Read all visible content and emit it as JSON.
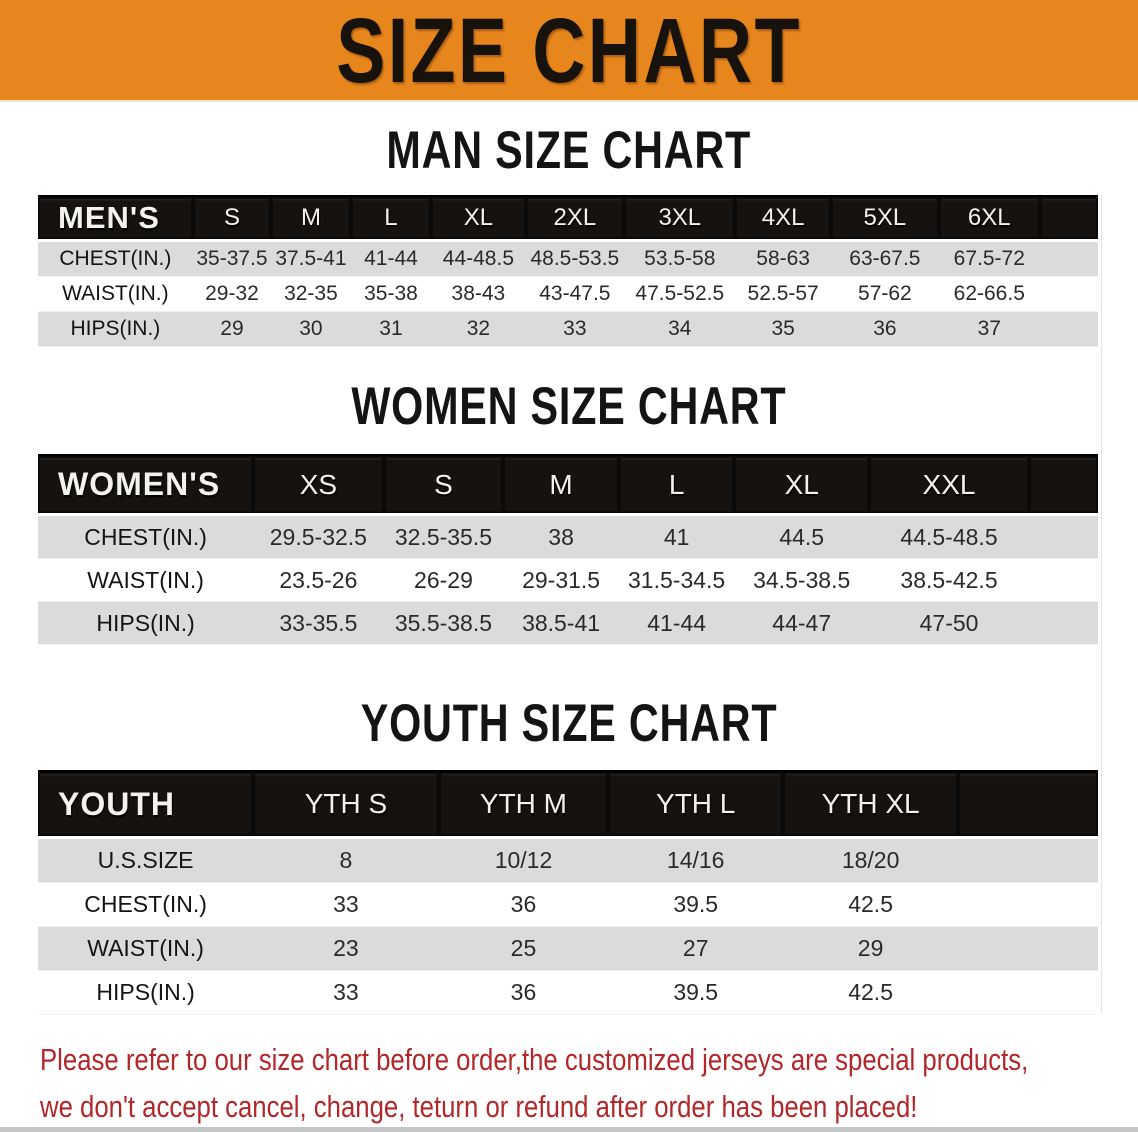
{
  "banner": {
    "title": "SIZE CHART",
    "bg_color": "#e8861e",
    "text_color": "#17120c"
  },
  "sections": [
    {
      "title": "MAN SIZE CHART",
      "table": {
        "corner_label": "MEN'S",
        "columns": [
          "S",
          "M",
          "L",
          "XL",
          "2XL",
          "3XL",
          "4XL",
          "5XL",
          "6XL"
        ],
        "rows": [
          {
            "label": "CHEST(IN.)",
            "values": [
              "35-37.5",
              "37.5-41",
              "41-44",
              "44-48.5",
              "48.5-53.5",
              "53.5-58",
              "58-63",
              "63-67.5",
              "67.5-72"
            ]
          },
          {
            "label": "WAIST(IN.)",
            "values": [
              "29-32",
              "32-35",
              "35-38",
              "38-43",
              "43-47.5",
              "47.5-52.5",
              "52.5-57",
              "57-62",
              "62-66.5"
            ]
          },
          {
            "label": "HIPS(IN.)",
            "values": [
              "29",
              "30",
              "31",
              "32",
              "33",
              "34",
              "35",
              "36",
              "37"
            ]
          }
        ]
      }
    },
    {
      "title": "WOMEN SIZE CHART",
      "table": {
        "corner_label": "WOMEN'S",
        "columns": [
          "XS",
          "S",
          "M",
          "L",
          "XL",
          "XXL"
        ],
        "rows": [
          {
            "label": "CHEST(IN.)",
            "values": [
              "29.5-32.5",
              "32.5-35.5",
              "38",
              "41",
              "44.5",
              "44.5-48.5"
            ]
          },
          {
            "label": "WAIST(IN.)",
            "values": [
              "23.5-26",
              "26-29",
              "29-31.5",
              "31.5-34.5",
              "34.5-38.5",
              "38.5-42.5"
            ]
          },
          {
            "label": "HIPS(IN.)",
            "values": [
              "33-35.5",
              "35.5-38.5",
              "38.5-41",
              "41-44",
              "44-47",
              "47-50"
            ]
          }
        ]
      }
    },
    {
      "title": "YOUTH SIZE CHART",
      "table": {
        "corner_label": "YOUTH",
        "columns": [
          "YTH S",
          "YTH M",
          "YTH L",
          "YTH XL"
        ],
        "rows": [
          {
            "label": "U.S.SIZE",
            "values": [
              "8",
              "10/12",
              "14/16",
              "18/20"
            ]
          },
          {
            "label": "CHEST(IN.)",
            "values": [
              "33",
              "36",
              "39.5",
              "42.5"
            ]
          },
          {
            "label": "WAIST(IN.)",
            "values": [
              "23",
              "25",
              "27",
              "29"
            ]
          },
          {
            "label": "HIPS(IN.)",
            "values": [
              "33",
              "36",
              "39.5",
              "42.5"
            ]
          }
        ]
      }
    }
  ],
  "disclaimer": {
    "line1": "Please refer to our size chart before order,the customized jerseys are special products,",
    "line2": "we don't accept cancel, change, teturn or refund after order has been placed!",
    "color": "#b2282a"
  },
  "stripe_color": "#dbdbdb",
  "header_bar_color": "#161210"
}
